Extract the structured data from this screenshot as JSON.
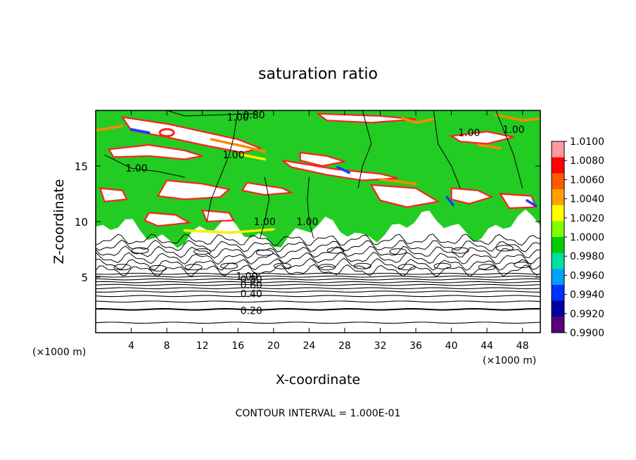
{
  "chart_data": {
    "type": "heatmap",
    "title": "saturation ratio",
    "xlabel": "X-coordinate",
    "ylabel": "Z-coordinate",
    "x_unit_left": "(×1000 m)",
    "x_unit_right": "(×1000 m)",
    "footer": "CONTOUR INTERVAL = 1.000E-01",
    "xlim": [
      0,
      50
    ],
    "ylim": [
      0,
      20
    ],
    "x_ticks": [
      4,
      8,
      12,
      16,
      20,
      24,
      28,
      32,
      36,
      40,
      44,
      48
    ],
    "y_ticks": [
      5,
      10,
      15
    ],
    "contour_labels": [
      {
        "text": "0.20",
        "x": 17.5,
        "y": 2.0
      },
      {
        "text": "0.40",
        "x": 17.5,
        "y": 3.5
      },
      {
        "text": "0.60",
        "x": 17.5,
        "y": 4.3
      },
      {
        "text": "0.80",
        "x": 17.5,
        "y": 4.8
      },
      {
        "text": "1.00",
        "x": 17.0,
        "y": 5.1
      },
      {
        "text": "1.00",
        "x": 16.0,
        "y": 19.4
      },
      {
        "text": "0.80",
        "x": 17.8,
        "y": 19.6
      },
      {
        "text": "1.00",
        "x": 15.5,
        "y": 16.0
      },
      {
        "text": "1.00",
        "x": 4.6,
        "y": 14.8
      },
      {
        "text": "1.00",
        "x": 19.0,
        "y": 10.0
      },
      {
        "text": "1.00",
        "x": 23.8,
        "y": 10.0
      },
      {
        "text": "1.00",
        "x": 42.0,
        "y": 18.0
      },
      {
        "text": "1.00",
        "x": 47.0,
        "y": 18.3
      }
    ],
    "colorbar": {
      "labels": [
        "1.0100",
        "1.0080",
        "1.0060",
        "1.0040",
        "1.0020",
        "1.0000",
        "0.9980",
        "0.9960",
        "0.9940",
        "0.9920",
        "0.9900"
      ],
      "colors": [
        "#ff9a9a",
        "#ff0000",
        "#ff5a00",
        "#ffa000",
        "#ffff00",
        "#80ff00",
        "#00cc00",
        "#00e0a0",
        "#00a0ff",
        "#0030ff",
        "#0000a0",
        "#5a007a"
      ]
    },
    "regions_note_colors": {
      "green": "#22cc22",
      "white": "#ffffff",
      "red": "#ff2020",
      "orange": "#ff8800",
      "yellow": "#ffee00",
      "blue": "#1040ff"
    }
  }
}
